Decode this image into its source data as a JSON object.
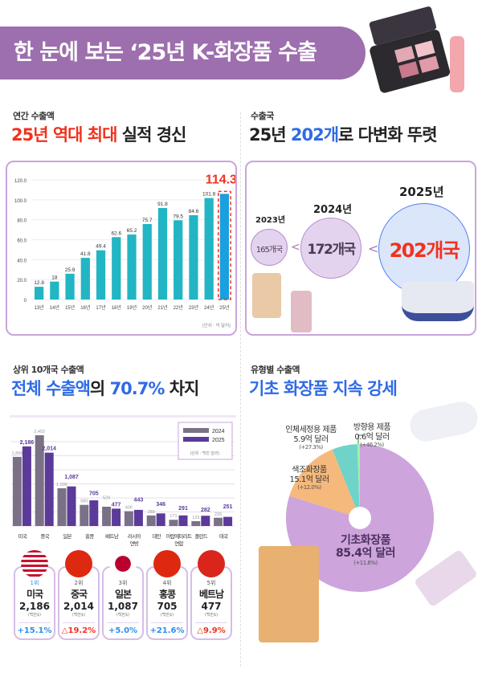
{
  "title": "한 눈에 보는 ‘25년 K-화장품 수출",
  "s1": {
    "label": "연간 수출액",
    "head_red": "25년 역대 최대",
    "head_rest": " 실적 경신",
    "unit": "(단위 : 억 달러)"
  },
  "s2": {
    "label": "수출국",
    "head_a": "25년 ",
    "head_blue": "202개",
    "head_b": "로 다변화 뚜렷",
    "items": [
      {
        "year": "2023년",
        "count": "165개국"
      },
      {
        "year": "2024년",
        "count": "172개국"
      },
      {
        "year": "2025년",
        "count": "202개국"
      }
    ],
    "sep": "<"
  },
  "s3": {
    "label": "상위 10개국 수출액",
    "head_blue": "전체 수출액",
    "head_a": "의 ",
    "head_blue2": "70.7%",
    "head_b": " 차지",
    "unit": "(단위 : 백만 달러)",
    "cards": [
      {
        "rank": "1위",
        "name": "미국",
        "value": "2,186",
        "unit": "(백만$)",
        "change": "+15.1%",
        "dir": "up",
        "flag": "us-flag"
      },
      {
        "rank": "2위",
        "name": "중국",
        "value": "2,014",
        "unit": "(백만$)",
        "change": "△19.2%",
        "dir": "down",
        "flag": "china-flag"
      },
      {
        "rank": "3위",
        "name": "일본",
        "value": "1,087",
        "unit": "(백만$)",
        "change": "+5.0%",
        "dir": "up",
        "flag": "japan-flag"
      },
      {
        "rank": "4위",
        "name": "홍콩",
        "value": "705",
        "unit": "(백만$)",
        "change": "+21.6%",
        "dir": "up",
        "flag": "hongkong-flag"
      },
      {
        "rank": "5위",
        "name": "베트남",
        "value": "477",
        "unit": "(백만$)",
        "change": "△9.9%",
        "dir": "down",
        "flag": "vietnam-flag"
      }
    ]
  },
  "s4": {
    "label": "유형별 수출액",
    "head": "기초 화장품 지속 강세"
  },
  "colors": {
    "accent": "#9d6fae",
    "bar": "#22b5c4",
    "bar_hl": "#1a9fdf",
    "red": "#f0321e",
    "blue": "#2f6be6",
    "s2024": "#7a7186",
    "s2025": "#5b3a9a",
    "up": "#2f8cf0",
    "down": "#f0321e"
  },
  "chart_data": [
    {
      "type": "bar",
      "categories": [
        "13년",
        "14년",
        "15년",
        "16년",
        "17년",
        "18년",
        "19년",
        "20년",
        "21년",
        "22년",
        "23년",
        "24년",
        "25년"
      ],
      "values": [
        12.8,
        18,
        25.9,
        41.8,
        49.4,
        62.6,
        65.2,
        75.7,
        91.8,
        79.5,
        84.6,
        101.8,
        114.3
      ],
      "yticks": [
        "0",
        "20.0",
        "40.0",
        "60.0",
        "80.0",
        "100.0",
        "120.0"
      ],
      "ylim": [
        0,
        120
      ],
      "grid": true,
      "highlight": "25년",
      "unit": "(단위 : 억 달러)"
    },
    {
      "type": "bar",
      "categories": [
        "미국",
        "중국",
        "일본",
        "홍콩",
        "베트남",
        "러시아 연방",
        "대만",
        "아랍에미리트 연합",
        "폴란드",
        "태국"
      ],
      "series": [
        {
          "name": "2024",
          "values": [
            1898,
            2492,
            1036,
            580,
            529,
            406,
            289,
            171,
            133,
            226
          ]
        },
        {
          "name": "2025",
          "values": [
            2186,
            2014,
            1087,
            705,
            477,
            443,
            346,
            291,
            282,
            251
          ]
        }
      ],
      "legend": "top-right",
      "grid": true,
      "unit": "(단위 : 백만 달러)"
    },
    {
      "type": "pie",
      "slices": [
        {
          "name": "기초화장품",
          "value": 85.4,
          "label": "85.4억 달러",
          "change": "(+11.6%)",
          "color": "#cda4dc"
        },
        {
          "name": "색조화장품",
          "value": 15.1,
          "label": "15.1억 달러",
          "change": "(+12.0%)",
          "color": "#f6b97c"
        },
        {
          "name": "인체세정용 제품",
          "value": 5.9,
          "label": "5.9억 달러",
          "change": "(+27.3%)",
          "color": "#6fd3c9"
        },
        {
          "name": "방향용 제품",
          "value": 0.6,
          "label": "0.6억 달러",
          "change": "(+46.2%)",
          "color": "#9cf2a6"
        }
      ]
    }
  ]
}
